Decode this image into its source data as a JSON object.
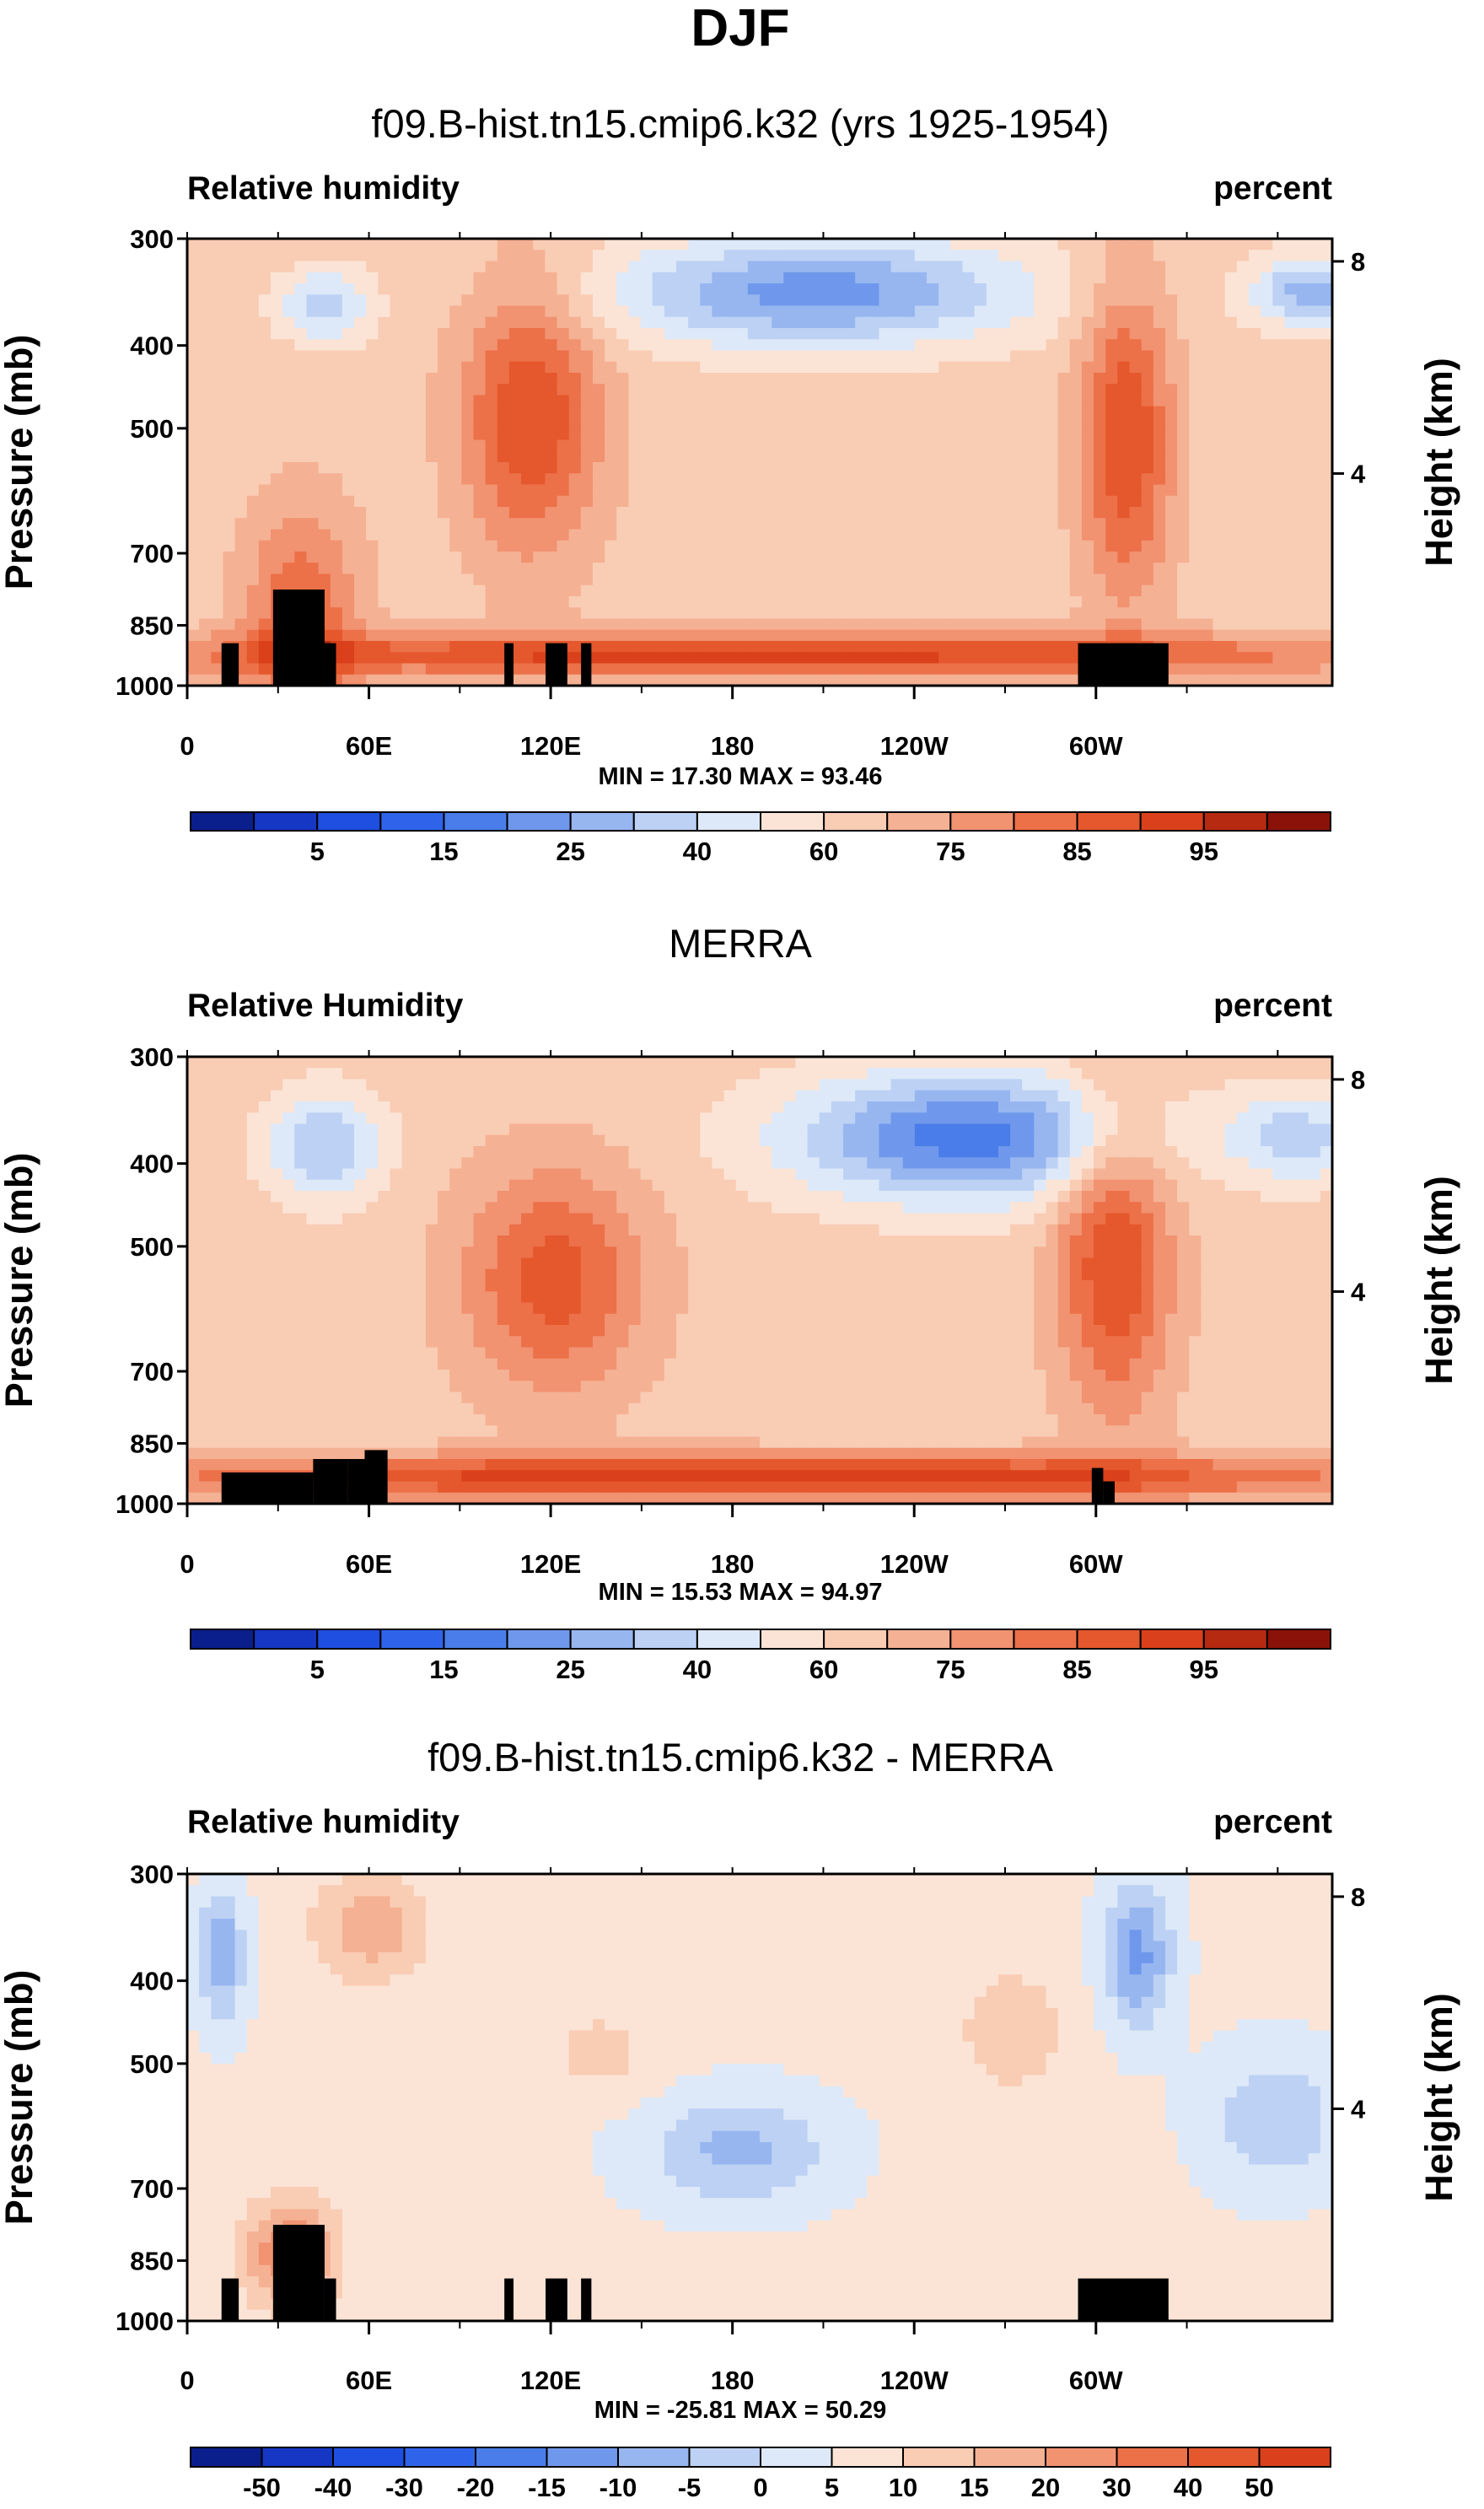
{
  "figure_title": "DJF",
  "chart_data": [
    {
      "type": "heatmap",
      "title": "f09.B-hist.tn15.cmip6.k32 (yrs 1925-1954)",
      "left_label": "Relative humidity",
      "right_label": "percent",
      "ylabel": "Pressure (mb)",
      "y2label": "Height (km)",
      "x_ticks": [
        "0",
        "60E",
        "120E",
        "180",
        "120W",
        "60W"
      ],
      "x_tick_values": [
        0,
        60,
        120,
        180,
        240,
        300
      ],
      "xlim": [
        0,
        378
      ],
      "y_ticks": [
        "300",
        "400",
        "500",
        "700",
        "850",
        "1000"
      ],
      "y_tick_values": [
        300,
        400,
        500,
        700,
        850,
        1000
      ],
      "ylim": [
        1000,
        300
      ],
      "y2_ticks": [
        "4",
        "8"
      ],
      "stats": "MIN = 17.30  MAX = 93.46",
      "min": 17.3,
      "max": 93.46,
      "colorbar_labels": [
        "5",
        "15",
        "25",
        "40",
        "60",
        "75",
        "85",
        "95"
      ],
      "colorbar_levels": [
        0,
        5,
        10,
        15,
        20,
        25,
        30,
        35,
        40,
        50,
        60,
        65,
        70,
        75,
        80,
        85,
        90,
        95
      ],
      "colorbar_colors": [
        "#0a1e8c",
        "#1537c4",
        "#1f4fe0",
        "#2f64ea",
        "#4a7de9",
        "#6f98ec",
        "#97b6f0",
        "#bdd1f4",
        "#dde9f8",
        "#fbe4d6",
        "#f9ccb4",
        "#f5b193",
        "#f19271",
        "#ec7048",
        "#e5572c",
        "#d9401b",
        "#b62a12",
        "#8b1208"
      ]
    },
    {
      "type": "heatmap",
      "title": "MERRA",
      "left_label": "Relative Humidity",
      "right_label": "percent",
      "ylabel": "Pressure (mb)",
      "y2label": "Height (km)",
      "x_ticks": [
        "0",
        "60E",
        "120E",
        "180",
        "120W",
        "60W"
      ],
      "x_tick_values": [
        0,
        60,
        120,
        180,
        240,
        300
      ],
      "xlim": [
        0,
        378
      ],
      "y_ticks": [
        "300",
        "400",
        "500",
        "700",
        "850",
        "1000"
      ],
      "y_tick_values": [
        300,
        400,
        500,
        700,
        850,
        1000
      ],
      "ylim": [
        1000,
        300
      ],
      "y2_ticks": [
        "4",
        "8"
      ],
      "stats": "MIN = 15.53  MAX = 94.97",
      "min": 15.53,
      "max": 94.97,
      "colorbar_labels": [
        "5",
        "15",
        "25",
        "40",
        "60",
        "75",
        "85",
        "95"
      ],
      "colorbar_levels": [
        0,
        5,
        10,
        15,
        20,
        25,
        30,
        35,
        40,
        50,
        60,
        65,
        70,
        75,
        80,
        85,
        90,
        95
      ],
      "colorbar_colors": [
        "#0a1e8c",
        "#1537c4",
        "#1f4fe0",
        "#2f64ea",
        "#4a7de9",
        "#6f98ec",
        "#97b6f0",
        "#bdd1f4",
        "#dde9f8",
        "#fbe4d6",
        "#f9ccb4",
        "#f5b193",
        "#f19271",
        "#ec7048",
        "#e5572c",
        "#d9401b",
        "#b62a12",
        "#8b1208"
      ]
    },
    {
      "type": "heatmap",
      "title": "f09.B-hist.tn15.cmip6.k32 - MERRA",
      "left_label": "Relative humidity",
      "right_label": "percent",
      "ylabel": "Pressure (mb)",
      "y2label": "Height (km)",
      "x_ticks": [
        "0",
        "60E",
        "120E",
        "180",
        "120W",
        "60W"
      ],
      "x_tick_values": [
        0,
        60,
        120,
        180,
        240,
        300
      ],
      "xlim": [
        0,
        378
      ],
      "y_ticks": [
        "300",
        "400",
        "500",
        "700",
        "850",
        "1000"
      ],
      "y_tick_values": [
        300,
        400,
        500,
        700,
        850,
        1000
      ],
      "ylim": [
        1000,
        300
      ],
      "y2_ticks": [
        "4",
        "8"
      ],
      "stats": "MIN = -25.81  MAX = 50.29",
      "min": -25.81,
      "max": 50.29,
      "colorbar_labels": [
        "-50",
        "-40",
        "-30",
        "-20",
        "-15",
        "-10",
        "-5",
        "0",
        "5",
        "10",
        "15",
        "20",
        "30",
        "40",
        "50"
      ],
      "colorbar_levels": [
        -60,
        -50,
        -40,
        -30,
        -20,
        -15,
        -10,
        -5,
        0,
        5,
        10,
        15,
        20,
        30,
        40,
        50
      ],
      "colorbar_colors": [
        "#0a1e8c",
        "#1537c4",
        "#1f4fe0",
        "#2f64ea",
        "#4a7de9",
        "#6f98ec",
        "#97b6f0",
        "#bdd1f4",
        "#dde9f8",
        "#fbe4d6",
        "#f9ccb4",
        "#f5b193",
        "#f19271",
        "#ec7048",
        "#e5572c",
        "#d9401b"
      ]
    }
  ]
}
